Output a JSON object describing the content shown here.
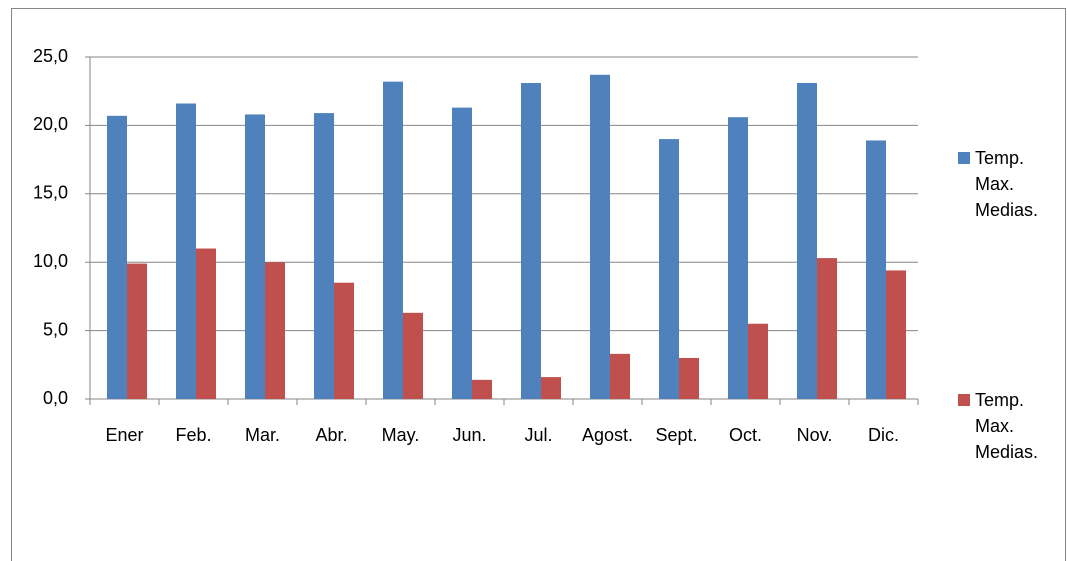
{
  "chart_data": {
    "type": "bar",
    "categories": [
      "Ener",
      "Feb.",
      "Mar.",
      "Abr.",
      "May.",
      "Jun.",
      "Jul.",
      "Agost.",
      "Sept.",
      "Oct.",
      "Nov.",
      "Dic."
    ],
    "series": [
      {
        "name": "Temp. Max. Medias.",
        "color": "#4f81bd",
        "values": [
          20.7,
          21.6,
          20.8,
          20.9,
          23.2,
          21.3,
          23.1,
          23.7,
          19.0,
          20.6,
          23.1,
          18.9
        ]
      },
      {
        "name": "Temp. Max. Medias.",
        "color": "#c0504d",
        "values": [
          9.9,
          11.0,
          10.0,
          8.5,
          6.3,
          1.4,
          1.6,
          3.3,
          3.0,
          5.5,
          10.3,
          9.4
        ]
      }
    ],
    "ylim": [
      0,
      25
    ],
    "yticks": [
      {
        "value": 0,
        "label": "0,0"
      },
      {
        "value": 5,
        "label": "5,0"
      },
      {
        "value": 10,
        "label": "10,0"
      },
      {
        "value": 15,
        "label": "15,0"
      },
      {
        "value": 20,
        "label": "20,0"
      },
      {
        "value": 25,
        "label": "25,0"
      }
    ],
    "grid": true,
    "legend": "right"
  }
}
